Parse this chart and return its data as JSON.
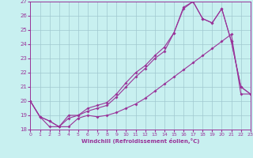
{
  "xlabel": "Windchill (Refroidissement éolien,°C)",
  "background_color": "#c8f0f0",
  "grid_color": "#a0c8d0",
  "line_color": "#993399",
  "xlim": [
    0,
    23
  ],
  "ylim": [
    18,
    27
  ],
  "yticks": [
    18,
    19,
    20,
    21,
    22,
    23,
    24,
    25,
    26,
    27
  ],
  "xticks": [
    0,
    1,
    2,
    3,
    4,
    5,
    6,
    7,
    8,
    9,
    10,
    11,
    12,
    13,
    14,
    15,
    16,
    17,
    18,
    19,
    20,
    21,
    22,
    23
  ],
  "series1_x": [
    0,
    1,
    2,
    3,
    4,
    5,
    6,
    7,
    8,
    9,
    10,
    11,
    12,
    13,
    14,
    15,
    16,
    17,
    18,
    19,
    20,
    21,
    22,
    23
  ],
  "series1_y": [
    20.0,
    18.9,
    18.2,
    18.2,
    18.2,
    18.8,
    19.0,
    18.9,
    19.0,
    19.2,
    19.5,
    19.8,
    20.2,
    20.7,
    21.2,
    21.7,
    22.2,
    22.7,
    23.2,
    23.7,
    24.2,
    24.7,
    20.5,
    20.5
  ],
  "series2_x": [
    0,
    1,
    2,
    3,
    4,
    5,
    6,
    7,
    8,
    9,
    10,
    11,
    12,
    13,
    14,
    15,
    16,
    17,
    18,
    19,
    20,
    21,
    22,
    23
  ],
  "series2_y": [
    20.0,
    18.9,
    18.6,
    18.2,
    18.8,
    19.0,
    19.3,
    19.5,
    19.7,
    20.3,
    21.0,
    21.7,
    22.3,
    23.0,
    23.5,
    24.8,
    26.6,
    27.0,
    25.8,
    25.5,
    26.5,
    24.2,
    21.0,
    20.5
  ],
  "series3_x": [
    0,
    1,
    2,
    3,
    4,
    5,
    6,
    7,
    8,
    9,
    10,
    11,
    12,
    13,
    14,
    15,
    16,
    17,
    18,
    19,
    20,
    21,
    22,
    23
  ],
  "series3_y": [
    20.0,
    18.9,
    18.6,
    18.2,
    19.0,
    19.0,
    19.5,
    19.7,
    19.9,
    20.5,
    21.3,
    22.0,
    22.5,
    23.2,
    23.8,
    24.8,
    26.5,
    27.0,
    25.8,
    25.5,
    26.5,
    24.2,
    21.0,
    20.5
  ],
  "marker": "D",
  "markersize": 2.0,
  "linewidth": 0.8
}
